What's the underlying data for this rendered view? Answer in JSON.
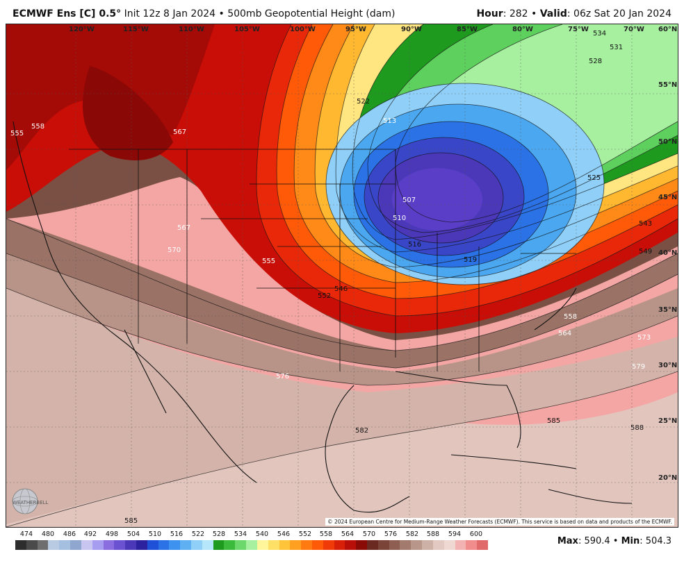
{
  "header": {
    "title_model": "ECMWF Ens [C] 0.5",
    "title_degree": "°",
    "title_rest": " Init 12z 8 Jan 2024 • 500mb Geopotential Height (dam)",
    "hour_label": "Hour",
    "hour_value": ": 282 • ",
    "valid_label": "Valid",
    "valid_value": ": 06z Sat 20 Jan 2024"
  },
  "map": {
    "longitude_labels": [
      "120°W",
      "115°W",
      "110°W",
      "105°W",
      "100°W",
      "95°W",
      "90°W",
      "85°W",
      "80°W",
      "75°W",
      "70°W"
    ],
    "latitude_labels": [
      "60°N",
      "55°N",
      "50°N",
      "45°N",
      "40°N",
      "35°N",
      "30°N",
      "25°N",
      "20°N"
    ],
    "contour_labels": [
      "555",
      "558",
      "567",
      "567",
      "570",
      "555",
      "546",
      "552",
      "522",
      "513",
      "507",
      "510",
      "516",
      "519",
      "525",
      "528",
      "531",
      "534",
      "543",
      "549",
      "558",
      "564",
      "573",
      "579",
      "576",
      "582",
      "585",
      "588",
      "585"
    ],
    "copyright": "© 2024 European Centre for Medium-Range Weather Forecasts (ECMWF). This service is based on data and products of the ECMWF.",
    "logo_text": "WEATHERBELL"
  },
  "legend": {
    "labels": [
      "474",
      "480",
      "486",
      "492",
      "498",
      "504",
      "510",
      "516",
      "522",
      "528",
      "534",
      "540",
      "546",
      "552",
      "558",
      "564",
      "570",
      "576",
      "582",
      "588",
      "594",
      "600"
    ],
    "colors": [
      "#2d2d2d",
      "#4a4a4a",
      "#6e6e6e",
      "#b9cbe2",
      "#a4bfe0",
      "#8fa7cf",
      "#c8c6f0",
      "#a79df0",
      "#8a6ee0",
      "#6b52d0",
      "#4a38b8",
      "#2c22a0",
      "#1e50d8",
      "#2a72e6",
      "#3c92ee",
      "#5fb0f2",
      "#90d0f8",
      "#b6e6fa",
      "#1e9a1e",
      "#3cba3c",
      "#6cd86c",
      "#a6f0a0",
      "#fff59a",
      "#ffe066",
      "#ffc43a",
      "#ffa020",
      "#ff7a10",
      "#ff5a08",
      "#f03a08",
      "#d82008",
      "#b81008",
      "#8a0a06",
      "#6a2a22",
      "#7a4438",
      "#8e5e52",
      "#a27a6e",
      "#b8968a",
      "#cdb0a6",
      "#e2cac2",
      "#f0d8d2",
      "#f2b2b2",
      "#f08c8c",
      "#e06a6a"
    ],
    "max_label": "Max",
    "max_value": ": 590.4 • ",
    "min_label": "Min",
    "min_value": ": 504.3"
  }
}
